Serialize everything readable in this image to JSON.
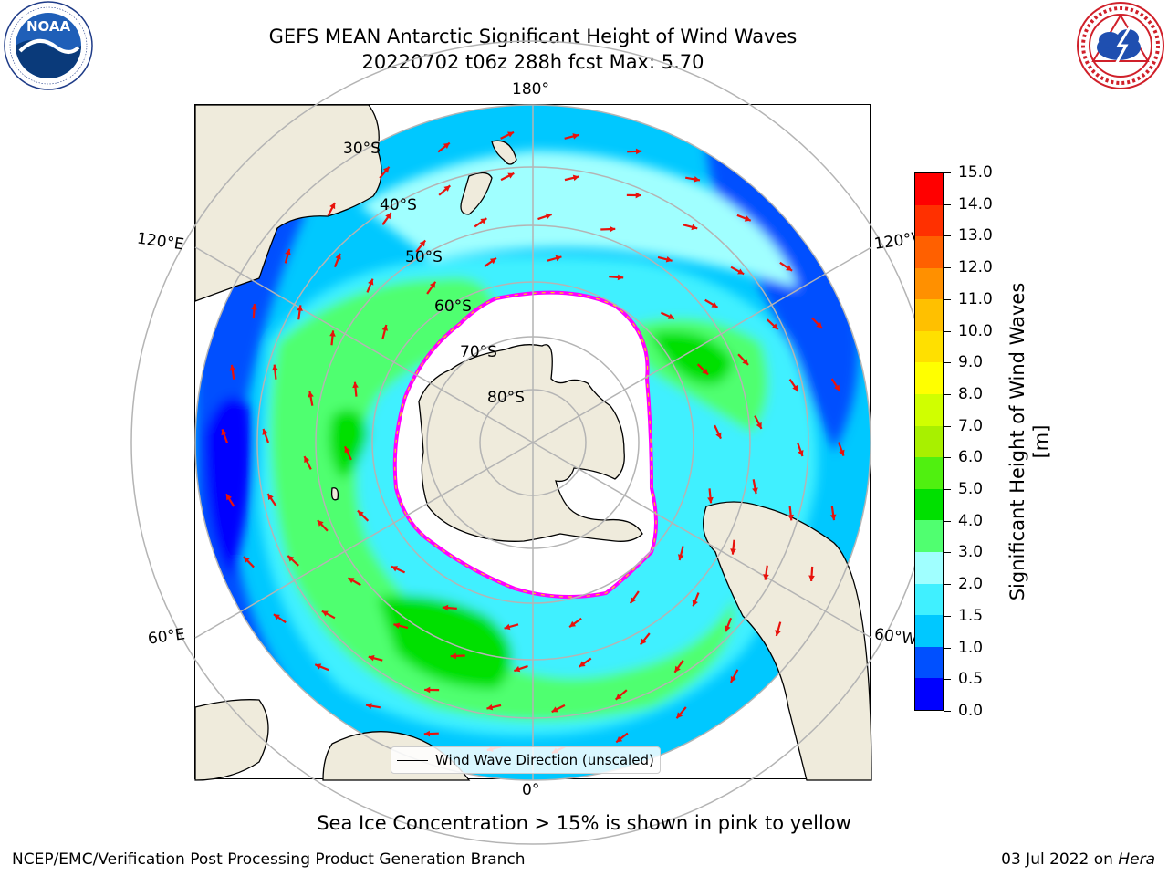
{
  "title": {
    "line1": "GEFS MEAN Antarctic Significant Height of Wind Waves",
    "line2": "20220702 t06z 288h fcst   Max: 5.70"
  },
  "logos": {
    "left": {
      "name": "noaa-logo",
      "text": "NOAA",
      "ring_text": "NATIONAL OCEANIC AND ATMOSPHERIC ADMINISTRATION · U.S. DEPARTMENT OF COMMERCE"
    },
    "right": {
      "name": "national-weather-service-logo",
      "ring_text": "NATIONAL WEATHER SERVICE"
    }
  },
  "map": {
    "projection": "south-polar-stereographic",
    "lon_labels": {
      "top": "180°",
      "bottom": "0°",
      "upper_left": "120°E",
      "upper_right": "120°W",
      "lower_left": "60°E",
      "lower_right": "60°W"
    },
    "lat_labels": [
      "30°S",
      "40°S",
      "50°S",
      "60°S",
      "70°S",
      "80°S"
    ],
    "colors": {
      "land": "#efebdc",
      "ice": "#ffffff",
      "ice_edge": "#ff00ff",
      "arrow": "#e8120c",
      "graticule": "#b4b4b4"
    },
    "legend": "Wind Wave Direction (unscaled)"
  },
  "colorbar": {
    "title": "Significant Height of Wind Waves [m]",
    "ticks": [
      "0.0",
      "0.5",
      "1.0",
      "1.5",
      "2.0",
      "3.0",
      "4.0",
      "5.0",
      "6.0",
      "7.0",
      "8.0",
      "9.0",
      "10.0",
      "11.0",
      "12.0",
      "13.0",
      "14.0",
      "15.0"
    ],
    "colors": [
      "#0000ff",
      "#0050ff",
      "#00c8ff",
      "#40f0ff",
      "#a0ffff",
      "#50ff70",
      "#00e000",
      "#50f010",
      "#a8f000",
      "#d0ff00",
      "#ffff00",
      "#ffe000",
      "#ffc000",
      "#ff9000",
      "#ff6000",
      "#ff3000",
      "#ff0000"
    ]
  },
  "note": "Sea Ice Concentration > 15% is shown in pink to yellow",
  "footer": {
    "left": "NCEP/EMC/Verification Post Processing Product Generation Branch",
    "date": "03 Jul 2022 on",
    "host": "Hera"
  }
}
